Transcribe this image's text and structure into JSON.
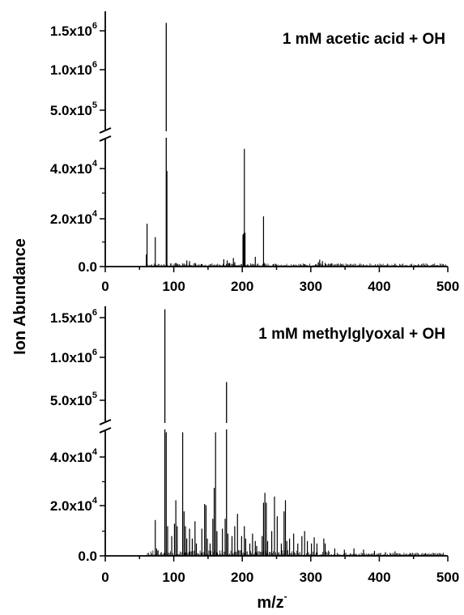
{
  "chart_data": {
    "type": "bar",
    "ylabel": "Ion Abundance",
    "xlabel": "m/z",
    "xlabel_superscript": "-",
    "xlim": [
      0,
      500
    ],
    "x_ticks": [
      "0",
      "100",
      "200",
      "300",
      "400",
      "500"
    ],
    "y_axis_break": true,
    "y_lower_ticks": [
      {
        "mantissa": "0.0",
        "exp": ""
      },
      {
        "mantissa": "2.0x10",
        "exp": "4"
      },
      {
        "mantissa": "4.0x10",
        "exp": "4"
      }
    ],
    "y_upper_ticks": [
      {
        "mantissa": "5.0x10",
        "exp": "5"
      },
      {
        "mantissa": "1.0x10",
        "exp": "6"
      },
      {
        "mantissa": "1.5x10",
        "exp": "6"
      }
    ],
    "panels": [
      {
        "title": "1 mM acetic acid + OH",
        "peaks": [
          [
            60,
            5000
          ],
          [
            61,
            17500
          ],
          [
            73,
            12000
          ],
          [
            89,
            1600000
          ],
          [
            90,
            39000
          ],
          [
            103,
            1500
          ],
          [
            105,
            1200
          ],
          [
            115,
            1200
          ],
          [
            119,
            2500
          ],
          [
            123,
            2200
          ],
          [
            131,
            1500
          ],
          [
            141,
            1000
          ],
          [
            173,
            3000
          ],
          [
            178,
            2500
          ],
          [
            181,
            1500
          ],
          [
            187,
            3500
          ],
          [
            189,
            1800
          ],
          [
            201,
            13000
          ],
          [
            202,
            13500
          ],
          [
            203,
            48000
          ],
          [
            204,
            13800
          ],
          [
            215,
            1000
          ],
          [
            219,
            4000
          ],
          [
            231,
            20500
          ],
          [
            232,
            1500
          ],
          [
            245,
            1000
          ],
          [
            250,
            800
          ],
          [
            275,
            800
          ],
          [
            291,
            900
          ],
          [
            307,
            900
          ],
          [
            311,
            1800
          ],
          [
            313,
            2800
          ],
          [
            317,
            2200
          ],
          [
            321,
            1500
          ],
          [
            329,
            1200
          ],
          [
            345,
            800
          ],
          [
            377,
            700
          ],
          [
            423,
            1200
          ],
          [
            447,
            600
          ],
          [
            477,
            600
          ]
        ]
      },
      {
        "title": "1 mM methylglyoxal + OH",
        "peaks": [
          [
            73,
            14500
          ],
          [
            75,
            3000
          ],
          [
            87,
            1600000
          ],
          [
            89,
            50000
          ],
          [
            91,
            12000
          ],
          [
            97,
            8000
          ],
          [
            101,
            13000
          ],
          [
            103,
            22500
          ],
          [
            105,
            12000
          ],
          [
            113,
            50000
          ],
          [
            115,
            18000
          ],
          [
            117,
            12000
          ],
          [
            119,
            7000
          ],
          [
            123,
            11000
          ],
          [
            127,
            7000
          ],
          [
            131,
            14000
          ],
          [
            133,
            5000
          ],
          [
            141,
            11000
          ],
          [
            145,
            21000
          ],
          [
            147,
            20500
          ],
          [
            149,
            7000
          ],
          [
            153,
            5000
          ],
          [
            157,
            15000
          ],
          [
            159,
            27500
          ],
          [
            161,
            50000
          ],
          [
            163,
            10000
          ],
          [
            171,
            11000
          ],
          [
            175,
            15000
          ],
          [
            177,
            720000
          ],
          [
            179,
            9000
          ],
          [
            185,
            8000
          ],
          [
            189,
            12000
          ],
          [
            193,
            17000
          ],
          [
            199,
            8000
          ],
          [
            203,
            12000
          ],
          [
            205,
            7000
          ],
          [
            211,
            5000
          ],
          [
            215,
            9000
          ],
          [
            219,
            6000
          ],
          [
            221,
            4000
          ],
          [
            229,
            8000
          ],
          [
            231,
            21500
          ],
          [
            233,
            25500
          ],
          [
            235,
            21500
          ],
          [
            237,
            6000
          ],
          [
            243,
            10000
          ],
          [
            247,
            24000
          ],
          [
            251,
            16000
          ],
          [
            257,
            5000
          ],
          [
            261,
            18000
          ],
          [
            263,
            22500
          ],
          [
            265,
            6000
          ],
          [
            269,
            7000
          ],
          [
            275,
            9000
          ],
          [
            281,
            5000
          ],
          [
            287,
            8000
          ],
          [
            291,
            10000
          ],
          [
            295,
            6000
          ],
          [
            301,
            5000
          ],
          [
            305,
            7500
          ],
          [
            309,
            5000
          ],
          [
            319,
            7000
          ],
          [
            321,
            5000
          ],
          [
            335,
            3000
          ],
          [
            349,
            2500
          ],
          [
            363,
            3000
          ],
          [
            377,
            2500
          ],
          [
            393,
            2000
          ],
          [
            409,
            1500
          ],
          [
            423,
            1800
          ],
          [
            445,
            1200
          ],
          [
            467,
            1000
          ],
          [
            485,
            800
          ]
        ]
      }
    ]
  }
}
